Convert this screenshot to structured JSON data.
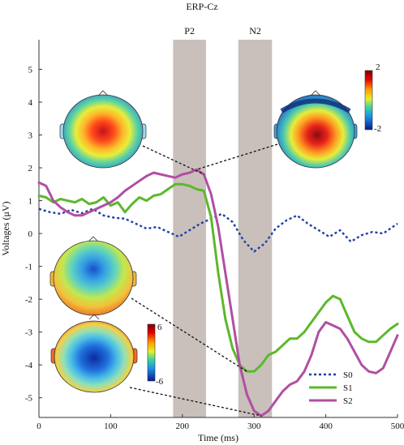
{
  "chart_data": {
    "type": "line",
    "title": "ERP-Cz",
    "xlabel": "Time (ms)",
    "ylabel": "Voltages (μV)",
    "xlim": [
      0,
      500
    ],
    "ylim": [
      -5.6,
      5.9
    ],
    "x_ticks": [
      0,
      100,
      200,
      300,
      400,
      500
    ],
    "y_ticks": [
      5,
      4,
      3,
      2,
      1,
      0,
      -1,
      -2,
      -3,
      -4,
      -5
    ],
    "grid": false,
    "legend_position": "bottom-right",
    "windows": [
      {
        "label": "P2",
        "start": 187,
        "end": 233
      },
      {
        "label": "N2",
        "start": 278,
        "end": 325
      }
    ],
    "series": [
      {
        "name": "S0",
        "color": "#1f3fa5",
        "style": "dotted",
        "x": [
          0,
          15,
          30,
          45,
          60,
          75,
          90,
          105,
          120,
          135,
          150,
          165,
          180,
          195,
          210,
          225,
          240,
          255,
          270,
          285,
          300,
          315,
          330,
          345,
          360,
          375,
          390,
          405,
          420,
          435,
          450,
          465,
          480,
          500
        ],
        "y": [
          0.75,
          0.65,
          0.6,
          0.72,
          0.62,
          0.75,
          0.55,
          0.48,
          0.45,
          0.3,
          0.15,
          0.2,
          0.05,
          -0.1,
          0.1,
          0.3,
          0.45,
          0.6,
          0.35,
          -0.2,
          -0.55,
          -0.3,
          0.15,
          0.4,
          0.55,
          0.3,
          0.1,
          -0.1,
          0.1,
          -0.25,
          -0.05,
          0.05,
          0.0,
          0.3
        ]
      },
      {
        "name": "S1",
        "color": "#5cb82d",
        "style": "solid",
        "x": [
          0,
          10,
          20,
          30,
          40,
          50,
          60,
          70,
          80,
          90,
          100,
          110,
          120,
          130,
          140,
          150,
          160,
          170,
          180,
          190,
          200,
          210,
          220,
          230,
          240,
          250,
          260,
          270,
          280,
          290,
          300,
          310,
          320,
          330,
          340,
          350,
          360,
          370,
          380,
          390,
          400,
          410,
          420,
          430,
          440,
          450,
          460,
          470,
          480,
          490,
          500
        ],
        "y": [
          1.15,
          1.1,
          0.95,
          1.05,
          1.0,
          0.95,
          1.05,
          0.9,
          0.95,
          1.1,
          0.85,
          0.95,
          0.65,
          0.9,
          1.1,
          1.0,
          1.15,
          1.2,
          1.35,
          1.5,
          1.5,
          1.45,
          1.35,
          1.3,
          0.5,
          -1.2,
          -2.6,
          -3.5,
          -4.0,
          -4.2,
          -4.2,
          -4.0,
          -3.7,
          -3.6,
          -3.4,
          -3.2,
          -3.2,
          -3.0,
          -2.7,
          -2.4,
          -2.1,
          -1.9,
          -2.0,
          -2.5,
          -3.0,
          -3.2,
          -3.3,
          -3.3,
          -3.1,
          -2.9,
          -2.75
        ]
      },
      {
        "name": "S2",
        "color": "#b14fa2",
        "style": "solid",
        "x": [
          0,
          10,
          20,
          30,
          40,
          50,
          60,
          70,
          80,
          90,
          100,
          110,
          120,
          130,
          140,
          150,
          160,
          170,
          180,
          190,
          200,
          210,
          220,
          230,
          240,
          250,
          260,
          270,
          280,
          290,
          300,
          310,
          320,
          330,
          340,
          350,
          360,
          370,
          380,
          390,
          400,
          410,
          420,
          430,
          440,
          450,
          460,
          470,
          480,
          490,
          500
        ],
        "y": [
          1.55,
          1.45,
          1.0,
          0.8,
          0.65,
          0.55,
          0.55,
          0.65,
          0.75,
          0.85,
          0.95,
          1.1,
          1.3,
          1.45,
          1.6,
          1.75,
          1.85,
          1.8,
          1.75,
          1.7,
          1.8,
          1.85,
          1.95,
          1.8,
          1.2,
          0.2,
          -1.2,
          -2.6,
          -4.0,
          -4.9,
          -5.4,
          -5.55,
          -5.4,
          -5.1,
          -4.8,
          -4.6,
          -4.5,
          -4.2,
          -3.7,
          -3.0,
          -2.7,
          -2.8,
          -2.9,
          -3.2,
          -3.6,
          -4.0,
          -4.2,
          -4.25,
          -4.1,
          -3.6,
          -3.1
        ]
      }
    ],
    "scalp_maps": [
      {
        "colorbar": [
          2,
          -2
        ],
        "colorbar_labels": [
          "2",
          "-2"
        ]
      },
      {
        "colorbar": [
          6,
          -6
        ],
        "colorbar_labels": [
          "6",
          "-6"
        ]
      }
    ]
  }
}
